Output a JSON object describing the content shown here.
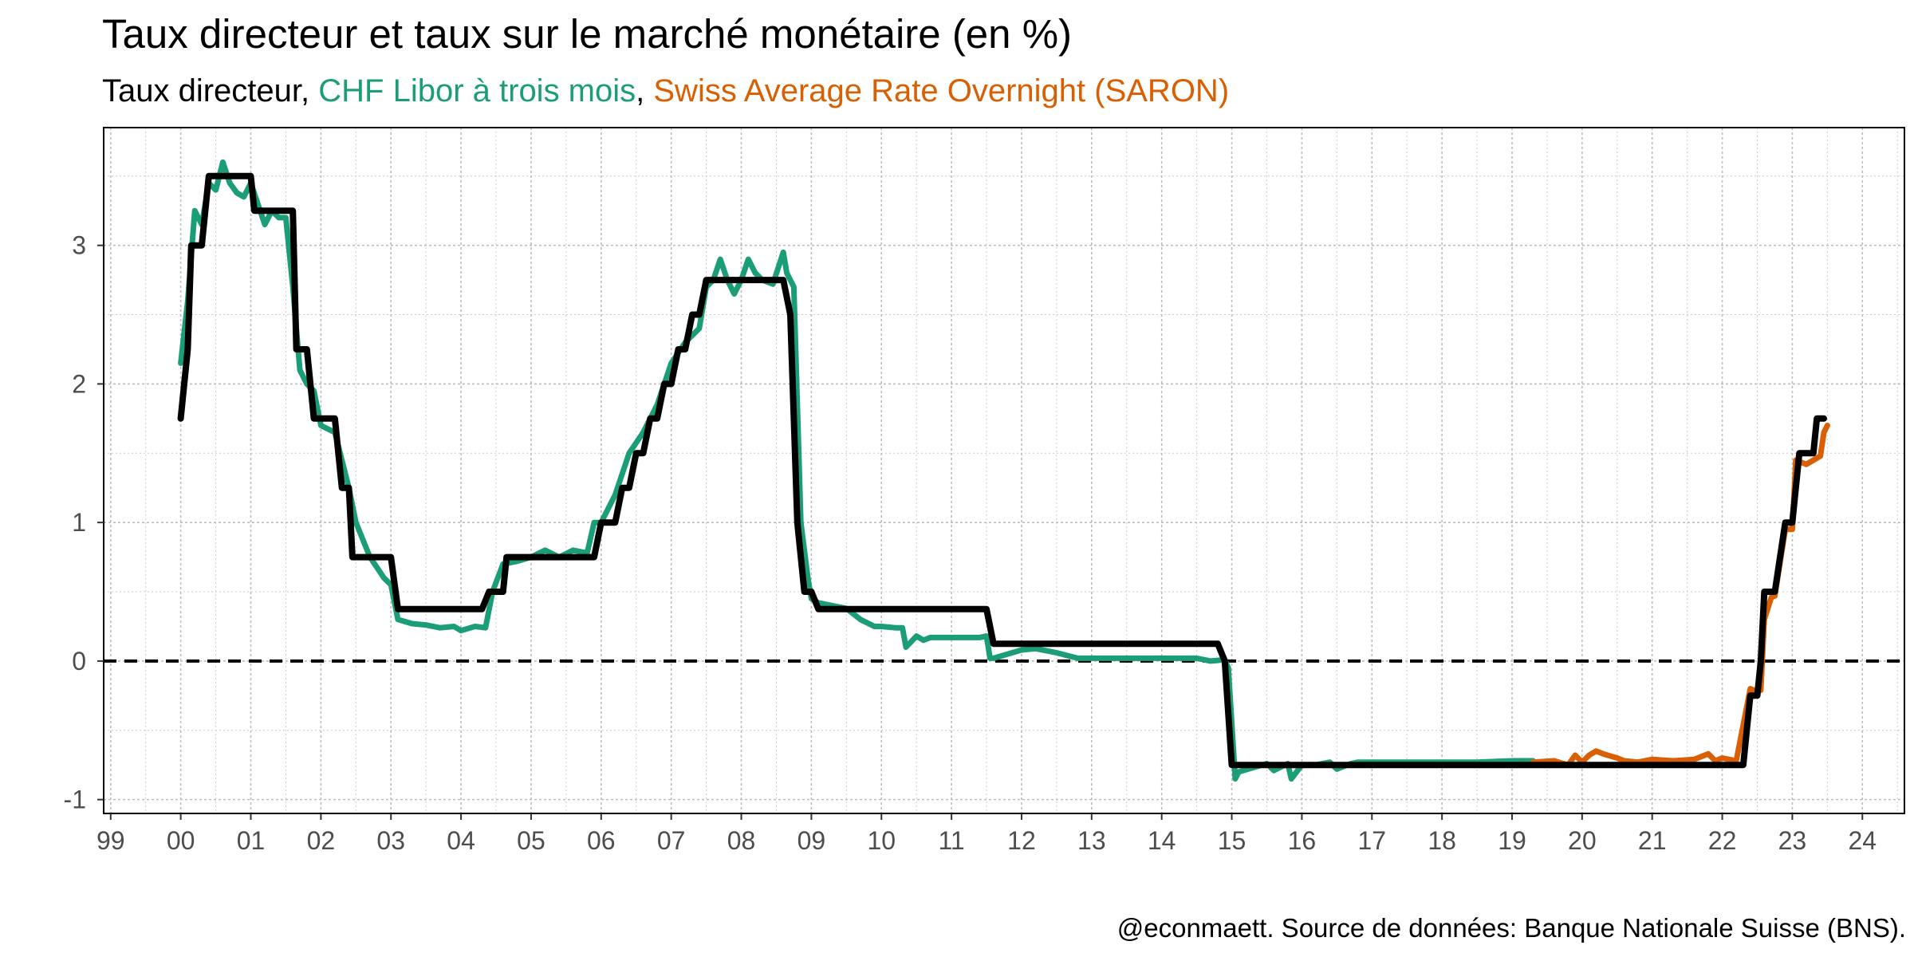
{
  "chart_data": {
    "type": "line",
    "title": "Taux directeur et taux sur le marché monétaire (en %)",
    "subtitle": {
      "part1": "Taux directeur",
      "sep1": ", ",
      "part2": "CHF Libor à trois mois",
      "sep2": ", ",
      "part3": "Swiss Average Rate Overnight (SARON)"
    },
    "caption": "@econmaett. Source de données: Banque Nationale Suisse (BNS).",
    "xlim": [
      1998.9,
      2024.6
    ],
    "ylim": [
      -1.1,
      3.85
    ],
    "x_ticks": [
      1999,
      2000,
      2001,
      2002,
      2003,
      2004,
      2005,
      2006,
      2007,
      2008,
      2009,
      2010,
      2011,
      2012,
      2013,
      2014,
      2015,
      2016,
      2017,
      2018,
      2019,
      2020,
      2021,
      2022,
      2023,
      2024
    ],
    "x_tick_labels": [
      "99",
      "00",
      "01",
      "02",
      "03",
      "04",
      "05",
      "06",
      "07",
      "08",
      "09",
      "10",
      "11",
      "12",
      "13",
      "14",
      "15",
      "16",
      "17",
      "18",
      "19",
      "20",
      "21",
      "22",
      "23",
      "24"
    ],
    "y_ticks": [
      -1,
      0,
      1,
      2,
      3
    ],
    "y_tick_labels": [
      "-1",
      "0",
      "1",
      "2",
      "3"
    ],
    "reference_line": 0,
    "grid": true,
    "legend": "subtitle",
    "colors": {
      "policy": "#000000",
      "libor": "#1b9e77",
      "saron": "#d95f02",
      "grid": "#cccccc"
    },
    "series": [
      {
        "name": "CHF Libor à trois mois",
        "color": "#1b9e77",
        "x": [
          2000.0,
          2000.1,
          2000.2,
          2000.3,
          2000.4,
          2000.5,
          2000.6,
          2000.7,
          2000.8,
          2000.9,
          2001.0,
          2001.1,
          2001.2,
          2001.3,
          2001.4,
          2001.5,
          2001.6,
          2001.7,
          2001.8,
          2001.9,
          2002.0,
          2002.2,
          2002.4,
          2002.5,
          2002.7,
          2002.9,
          2003.0,
          2003.1,
          2003.3,
          2003.5,
          2003.7,
          2003.9,
          2004.0,
          2004.2,
          2004.35,
          2004.45,
          2004.6,
          2004.8,
          2005.0,
          2005.2,
          2005.4,
          2005.6,
          2005.8,
          2005.9,
          2006.0,
          2006.2,
          2006.4,
          2006.6,
          2006.8,
          2007.0,
          2007.2,
          2007.4,
          2007.5,
          2007.6,
          2007.7,
          2007.8,
          2007.9,
          2008.0,
          2008.1,
          2008.2,
          2008.3,
          2008.45,
          2008.6,
          2008.65,
          2008.75,
          2008.85,
          2008.95,
          2009.0,
          2009.1,
          2009.3,
          2009.5,
          2009.7,
          2009.9,
          2010.0,
          2010.2,
          2010.3,
          2010.35,
          2010.5,
          2010.6,
          2010.7,
          2010.9,
          2011.2,
          2011.4,
          2011.5,
          2011.55,
          2011.6,
          2011.8,
          2012.0,
          2012.2,
          2012.5,
          2012.8,
          2013.0,
          2013.5,
          2014.0,
          2014.5,
          2014.7,
          2014.9,
          2014.95,
          2015.05,
          2015.1,
          2015.3,
          2015.5,
          2015.6,
          2015.8,
          2015.85,
          2016.0,
          2016.2,
          2016.4,
          2016.5,
          2016.7,
          2016.8,
          2017.0,
          2017.5,
          2018.0,
          2018.5,
          2019.0,
          2019.3
        ],
        "values": [
          2.15,
          2.6,
          3.25,
          3.15,
          3.45,
          3.4,
          3.6,
          3.45,
          3.38,
          3.35,
          3.45,
          3.3,
          3.15,
          3.25,
          3.2,
          3.2,
          2.7,
          2.1,
          2.0,
          1.95,
          1.7,
          1.65,
          1.25,
          1.0,
          0.75,
          0.6,
          0.55,
          0.3,
          0.27,
          0.26,
          0.24,
          0.25,
          0.22,
          0.25,
          0.24,
          0.5,
          0.7,
          0.72,
          0.75,
          0.8,
          0.75,
          0.8,
          0.78,
          1.0,
          1.0,
          1.2,
          1.5,
          1.65,
          1.85,
          2.15,
          2.3,
          2.4,
          2.7,
          2.75,
          2.9,
          2.75,
          2.65,
          2.75,
          2.9,
          2.8,
          2.75,
          2.72,
          2.95,
          2.8,
          2.7,
          1.0,
          0.6,
          0.45,
          0.42,
          0.4,
          0.38,
          0.3,
          0.25,
          0.25,
          0.24,
          0.24,
          0.1,
          0.18,
          0.15,
          0.17,
          0.17,
          0.17,
          0.17,
          0.18,
          0.02,
          0.02,
          0.05,
          0.08,
          0.09,
          0.06,
          0.02,
          0.02,
          0.02,
          0.02,
          0.02,
          0.0,
          0.01,
          -0.05,
          -0.85,
          -0.8,
          -0.77,
          -0.74,
          -0.79,
          -0.74,
          -0.85,
          -0.75,
          -0.75,
          -0.73,
          -0.78,
          -0.74,
          -0.73,
          -0.73,
          -0.73,
          -0.73,
          -0.73,
          -0.72,
          -0.72
        ]
      },
      {
        "name": "Swiss Average Rate Overnight (SARON)",
        "color": "#d95f02",
        "x": [
          2019.3,
          2019.6,
          2019.8,
          2019.9,
          2020.0,
          2020.1,
          2020.2,
          2020.3,
          2020.5,
          2020.6,
          2020.8,
          2021.0,
          2021.3,
          2021.6,
          2021.8,
          2021.9,
          2022.0,
          2022.2,
          2022.4,
          2022.5,
          2022.55,
          2022.6,
          2022.7,
          2022.75,
          2022.9,
          2023.0,
          2023.05,
          2023.2,
          2023.4,
          2023.45,
          2023.5
        ],
        "values": [
          -0.73,
          -0.72,
          -0.75,
          -0.68,
          -0.73,
          -0.68,
          -0.65,
          -0.67,
          -0.7,
          -0.72,
          -0.73,
          -0.71,
          -0.72,
          -0.71,
          -0.67,
          -0.72,
          -0.7,
          -0.72,
          -0.2,
          -0.22,
          -0.21,
          0.3,
          0.46,
          0.47,
          0.95,
          0.95,
          1.45,
          1.42,
          1.48,
          1.65,
          1.7
        ]
      },
      {
        "name": "Taux directeur",
        "color": "#000000",
        "x": [
          2000.0,
          2000.1,
          2000.15,
          2000.3,
          2000.4,
          2000.6,
          2000.75,
          2001.0,
          2001.05,
          2001.3,
          2001.6,
          2001.65,
          2001.8,
          2001.9,
          2002.2,
          2002.3,
          2002.4,
          2002.45,
          2002.55,
          2002.65,
          2003.0,
          2003.1,
          2004.3,
          2004.4,
          2004.6,
          2004.65,
          2005.9,
          2006.0,
          2006.2,
          2006.3,
          2006.4,
          2006.5,
          2006.6,
          2006.7,
          2006.8,
          2006.9,
          2007.0,
          2007.1,
          2007.2,
          2007.3,
          2007.4,
          2007.5,
          2007.6,
          2007.7,
          2007.8,
          2008.6,
          2008.7,
          2008.8,
          2008.9,
          2009.0,
          2009.1,
          2009.2,
          2011.5,
          2011.6,
          2014.8,
          2014.9,
          2015.0,
          2022.3,
          2022.4,
          2022.5,
          2022.55,
          2022.6,
          2022.7,
          2022.75,
          2022.9,
          2022.95,
          2023.0,
          2023.1,
          2023.3,
          2023.35,
          2023.45
        ],
        "values": [
          1.75,
          2.25,
          3.0,
          3.0,
          3.5,
          3.5,
          3.5,
          3.5,
          3.25,
          3.25,
          3.25,
          2.25,
          2.25,
          1.75,
          1.75,
          1.25,
          1.25,
          0.75,
          0.75,
          0.75,
          0.75,
          0.375,
          0.375,
          0.5,
          0.5,
          0.75,
          0.75,
          1.0,
          1.0,
          1.25,
          1.25,
          1.5,
          1.5,
          1.75,
          1.75,
          2.0,
          2.0,
          2.25,
          2.25,
          2.5,
          2.5,
          2.75,
          2.75,
          2.75,
          2.75,
          2.75,
          2.5,
          1.0,
          0.5,
          0.5,
          0.375,
          0.375,
          0.375,
          0.125,
          0.125,
          0.0,
          -0.75,
          -0.75,
          -0.25,
          -0.25,
          0.0,
          0.5,
          0.5,
          0.5,
          1.0,
          1.0,
          1.0,
          1.5,
          1.5,
          1.75,
          1.75
        ]
      }
    ]
  }
}
